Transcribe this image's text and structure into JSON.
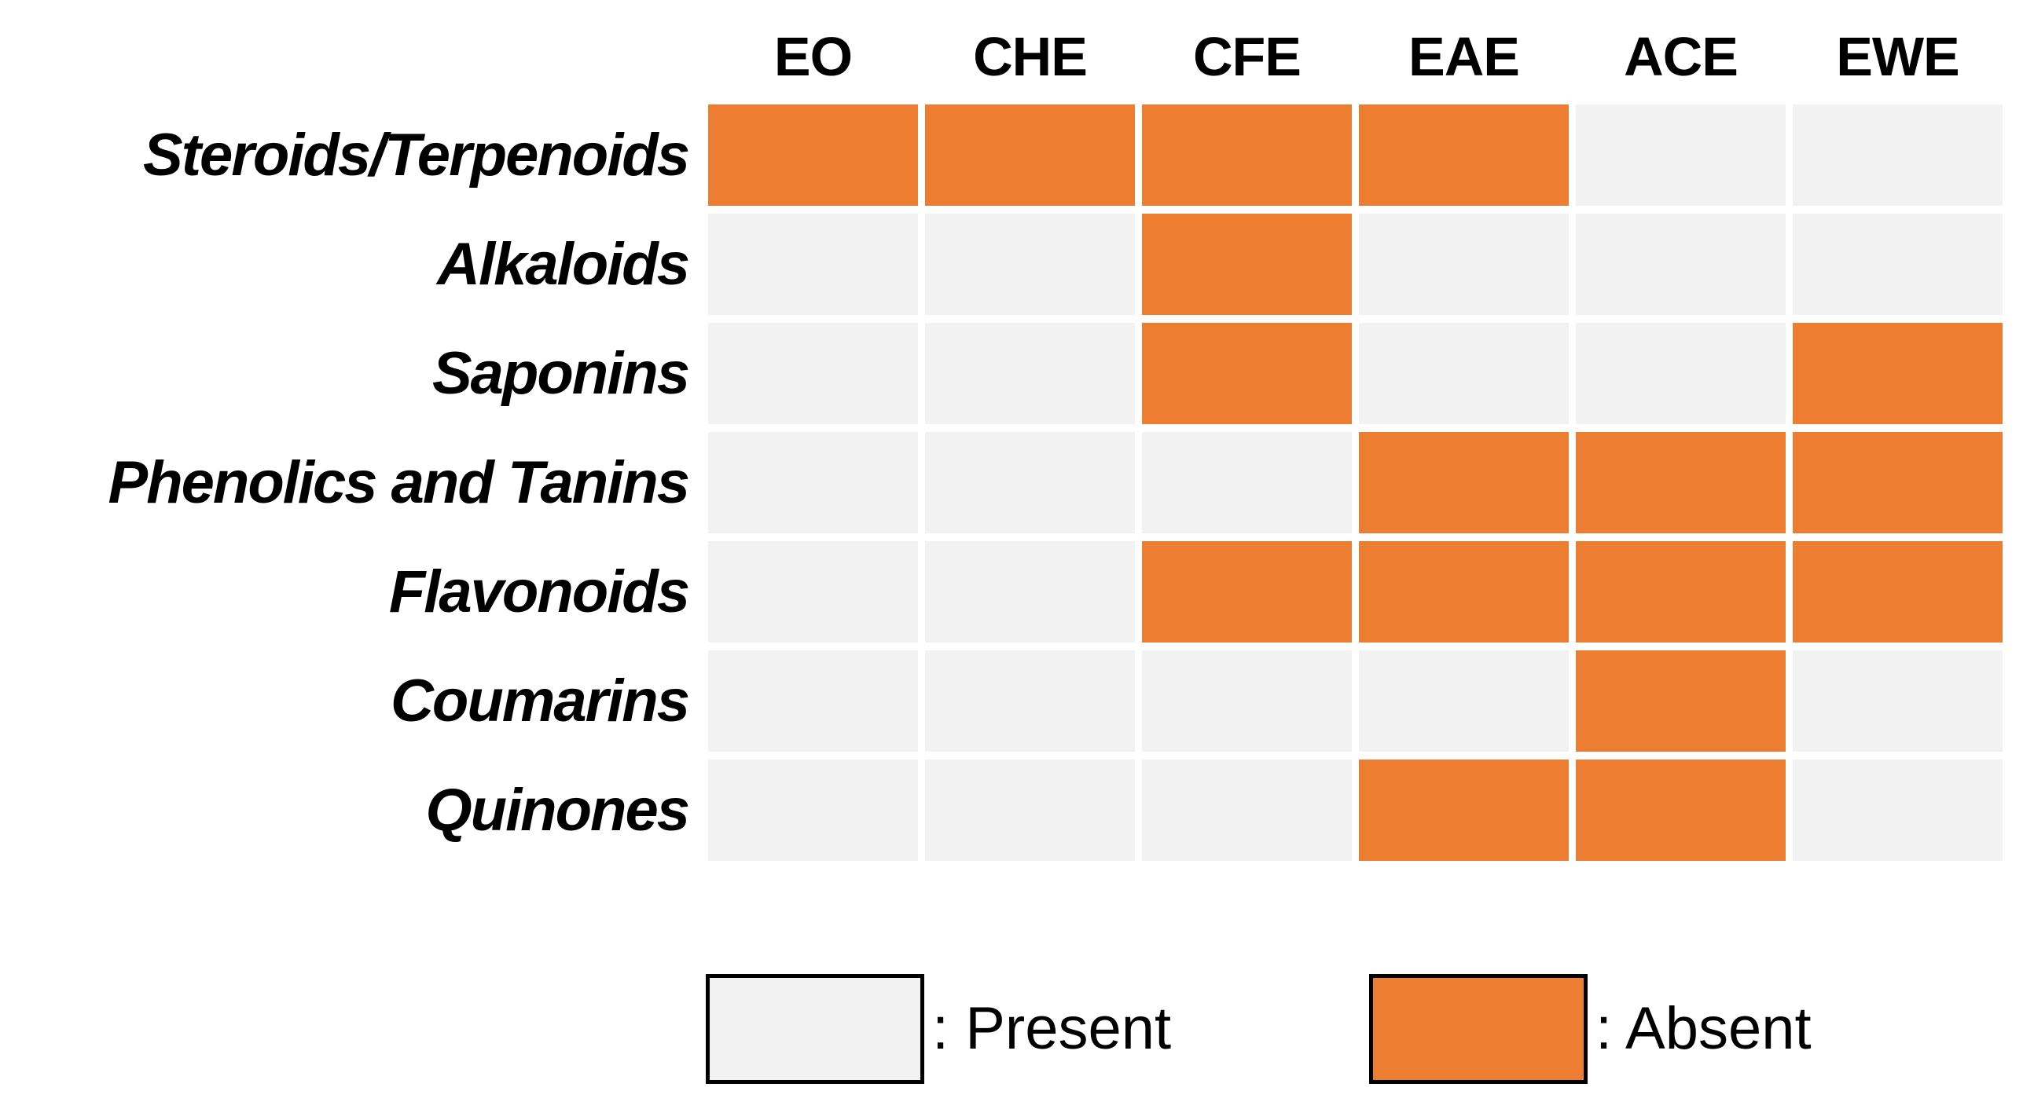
{
  "chart_data": {
    "type": "heatmap",
    "title": "",
    "columns": [
      "EO",
      "CHE",
      "CFE",
      "EAE",
      "ACE",
      "EWE"
    ],
    "rows": [
      "Steroids/Terpenoids",
      "Alkaloids",
      "Saponins",
      "Phenolics and Tanins",
      "Flavonoids",
      "Coumarins",
      "Quinones"
    ],
    "cell_states": [
      [
        "absent",
        "absent",
        "absent",
        "absent",
        "present",
        "present"
      ],
      [
        "present",
        "present",
        "absent",
        "present",
        "present",
        "present"
      ],
      [
        "present",
        "present",
        "absent",
        "present",
        "present",
        "absent"
      ],
      [
        "present",
        "present",
        "present",
        "absent",
        "absent",
        "absent"
      ],
      [
        "present",
        "present",
        "absent",
        "absent",
        "absent",
        "absent"
      ],
      [
        "present",
        "present",
        "present",
        "present",
        "absent",
        "present"
      ],
      [
        "present",
        "present",
        "present",
        "absent",
        "absent",
        "present"
      ]
    ],
    "colors": {
      "present": "#F2F2F2",
      "absent": "#ED7D31"
    },
    "legend_position": "bottom",
    "grid_gaps": true
  },
  "legend": {
    "present_label": ": Present",
    "absent_label": ": Absent"
  }
}
